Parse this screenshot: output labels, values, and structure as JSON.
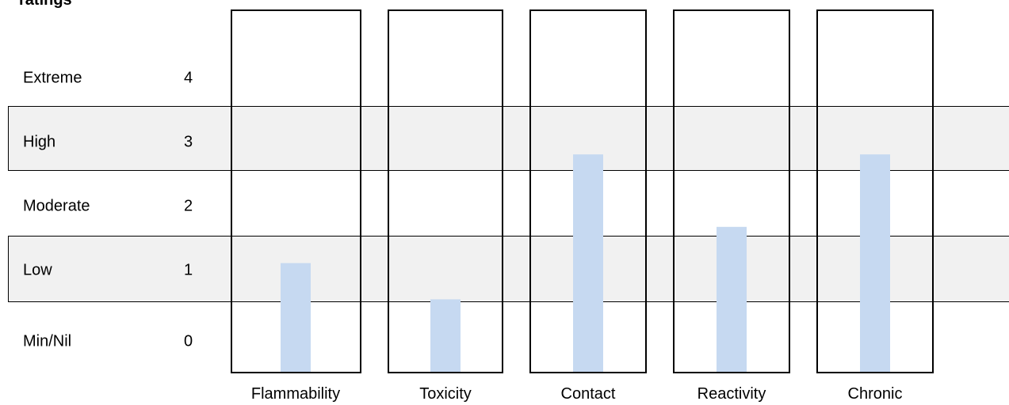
{
  "heading": "ratings",
  "chart_data": {
    "type": "bar",
    "title": "",
    "ylabel": "",
    "rating_levels": [
      {
        "label": "Extreme",
        "value": "4"
      },
      {
        "label": "High",
        "value": "3"
      },
      {
        "label": "Moderate",
        "value": "2"
      },
      {
        "label": "Low",
        "value": "1"
      },
      {
        "label": "Min/Nil",
        "value": "0"
      }
    ],
    "categories": [
      "Flammability",
      "Toxicity",
      "Contact",
      "Reactivity",
      "Chronic"
    ],
    "values": [
      1,
      0.5,
      2.5,
      1.5,
      2.5
    ],
    "ylim": [
      -0.5,
      4.5
    ],
    "bar_color": "#c6d9f1",
    "band_color": "#f1f1f1"
  }
}
